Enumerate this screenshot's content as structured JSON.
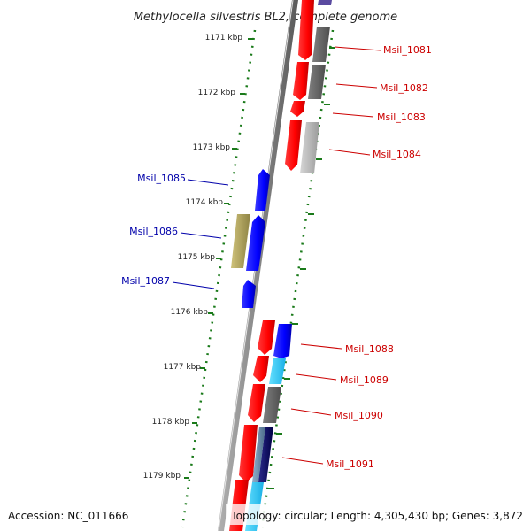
{
  "title": "Methylocella silvestris BL2, complete genome",
  "footer": {
    "accession": "Accession: NC_011666",
    "summary": "Topology: circular; Length: 4,305,430 bp; Genes: 3,872"
  },
  "kbp_ticks": [
    "1171 kbp",
    "1172 kbp",
    "1173 kbp",
    "1174 kbp",
    "1175 kbp",
    "1176 kbp",
    "1177 kbp",
    "1178 kbp",
    "1179 kbp"
  ],
  "gene_labels": {
    "right": [
      "Msil_1081",
      "Msil_1082",
      "Msil_1083",
      "Msil_1084",
      "Msil_1088",
      "Msil_1089",
      "Msil_1090",
      "Msil_1091"
    ],
    "left": [
      "Msil_1085",
      "Msil_1086",
      "Msil_1087"
    ]
  },
  "colors": {
    "reverse_gene_label": "#cc0000",
    "forward_gene_label": "#0000aa",
    "tick": "#1a7a1a",
    "backbone": "#8a8a8a",
    "red_cds": "#ff0000",
    "blue_cds": "#0000ff",
    "dark_grey_cds": "#666666",
    "light_grey_cds": "#bbbbbb",
    "olive_cds": "#b5a85a",
    "cyan_cds": "#22ccff",
    "navy_cds": "#000066",
    "steel_cds": "#6688aa"
  }
}
